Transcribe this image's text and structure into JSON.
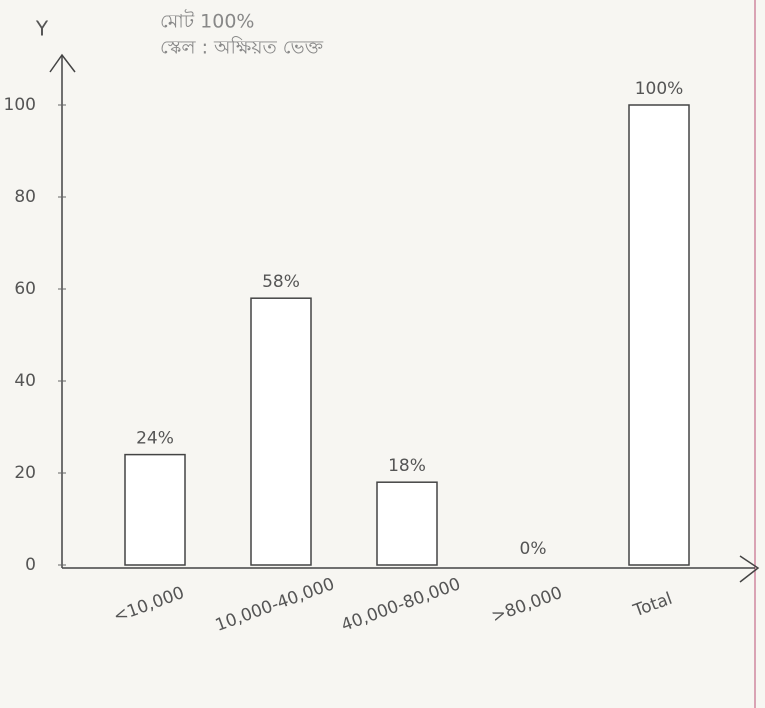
{
  "chart_data": {
    "type": "bar",
    "title": "মোট 100%",
    "subtitle": "স্কেল : অক্ষিয়ত ভেক্ত",
    "y_label": "Y",
    "categories": [
      "<10,000",
      "10,000-40,000",
      "40,000-80,000",
      ">80,000",
      "Total"
    ],
    "values": [
      24,
      58,
      18,
      0,
      100
    ],
    "value_labels": [
      "24%",
      "58%",
      "18%",
      "0%",
      "100%"
    ],
    "color": "#ffffff",
    "ylim": [
      0,
      110
    ],
    "yticks": [
      0,
      20,
      40,
      60,
      80,
      100
    ],
    "grid": false
  }
}
